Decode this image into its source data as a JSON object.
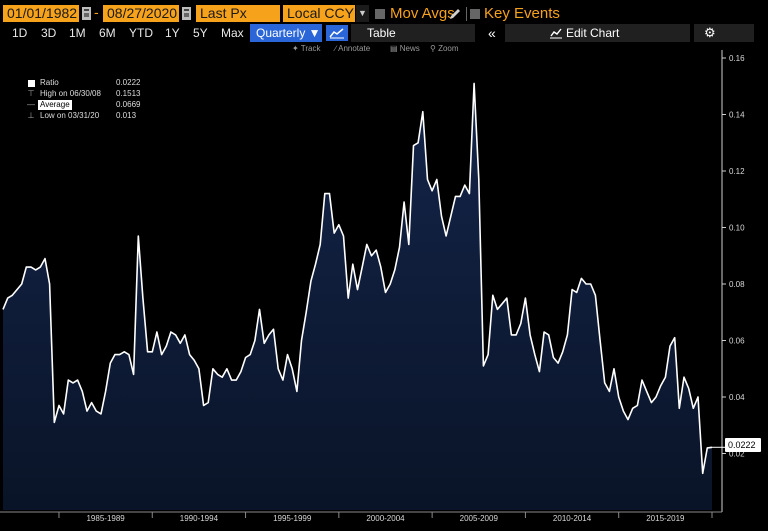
{
  "toolbar": {
    "start_date": "01/01/1982",
    "end_date": "08/27/2020",
    "field": "Last Px",
    "currency": "Local CCY",
    "mov_avgs": "Mov Avgs",
    "key_events": "Key Events",
    "ranges": [
      "1D",
      "3D",
      "1M",
      "6M",
      "YTD",
      "1Y",
      "5Y",
      "Max"
    ],
    "periodicity": "Quarterly ▼",
    "table": "Table",
    "edit_chart": "Edit Chart",
    "collapse_glyph": "«",
    "settings_glyph": "⚙"
  },
  "hints": {
    "track": "Track",
    "annotate": "Annotate",
    "news": "News",
    "zoom": "Zoom"
  },
  "legend": {
    "ratio_label": "Ratio",
    "ratio_value": "0.0222",
    "high_label": "High on 06/30/08",
    "high_value": "0.1513",
    "average_label": "Average",
    "average_value": "0.0669",
    "low_label": "Low on 03/31/20",
    "low_value": "0.013"
  },
  "last_value_tag": "0.0222",
  "colors": {
    "accent_orange": "#f7a21b",
    "periodicity_blue": "#2a66d8",
    "area_fill": "#0d1a33",
    "line": "#ffffff"
  },
  "chart_data": {
    "type": "area",
    "series": [
      {
        "values": [
          0.071,
          0.075,
          0.076,
          0.078,
          0.08,
          0.086,
          0.086,
          0.085,
          0.086,
          0.089,
          0.08,
          0.031,
          0.037,
          0.034,
          0.046,
          0.045,
          0.046,
          0.042,
          0.035,
          0.038,
          0.035,
          0.034,
          0.042,
          0.052,
          0.055,
          0.055,
          0.056,
          0.055,
          0.048,
          0.097,
          0.075,
          0.056,
          0.056,
          0.063,
          0.055,
          0.058,
          0.063,
          0.062,
          0.059,
          0.062,
          0.055,
          0.053,
          0.05,
          0.037,
          0.038,
          0.05,
          0.048,
          0.047,
          0.05,
          0.046,
          0.046,
          0.049,
          0.054,
          0.055,
          0.06,
          0.071,
          0.059,
          0.062,
          0.064,
          0.05,
          0.046,
          0.055,
          0.05,
          0.042,
          0.06,
          0.07,
          0.081,
          0.087,
          0.094,
          0.112,
          0.112,
          0.098,
          0.101,
          0.097,
          0.075,
          0.087,
          0.078,
          0.086,
          0.094,
          0.09,
          0.092,
          0.086,
          0.077,
          0.08,
          0.085,
          0.093,
          0.109,
          0.094,
          0.129,
          0.13,
          0.141,
          0.117,
          0.113,
          0.117,
          0.104,
          0.097,
          0.104,
          0.111,
          0.111,
          0.115,
          0.112,
          0.151,
          0.117,
          0.051,
          0.055,
          0.076,
          0.071,
          0.073,
          0.075,
          0.062,
          0.062,
          0.066,
          0.075,
          0.062,
          0.055,
          0.049,
          0.063,
          0.062,
          0.054,
          0.052,
          0.056,
          0.062,
          0.078,
          0.077,
          0.082,
          0.08,
          0.08,
          0.076,
          0.06,
          0.045,
          0.042,
          0.05,
          0.04,
          0.035,
          0.032,
          0.036,
          0.037,
          0.046,
          0.042,
          0.038,
          0.04,
          0.044,
          0.047,
          0.058,
          0.061,
          0.036,
          0.047,
          0.043,
          0.036,
          0.04,
          0.013,
          0.022,
          0.0222
        ]
      }
    ],
    "x_tick_labels": [
      "1985-1989",
      "1990-1994",
      "1995-1999",
      "2000-2004",
      "2005-2009",
      "2010-2014",
      "2015-2019"
    ],
    "y_tick_labels": [
      "0.16",
      "0.14",
      "0.12",
      "0.10",
      "0.08",
      "0.06",
      "0.04",
      "0.02"
    ],
    "ylim": [
      0.0,
      0.16
    ],
    "grid": false,
    "legend_position": "top-left"
  }
}
